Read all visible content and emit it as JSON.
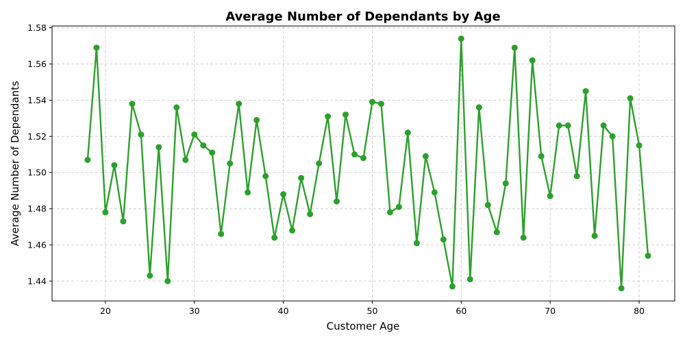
{
  "chart_data": {
    "type": "line",
    "title": "Average Number of Dependants by Age",
    "xlabel": "Customer Age",
    "ylabel": "Average Number of Dependants",
    "xlim": [
      14,
      84
    ],
    "ylim": [
      1.429,
      1.581
    ],
    "xticks": [
      20,
      30,
      40,
      50,
      60,
      70,
      80
    ],
    "yticks": [
      1.44,
      1.46,
      1.48,
      1.5,
      1.52,
      1.54,
      1.56,
      1.58
    ],
    "ytick_labels": [
      "1.44",
      "1.46",
      "1.48",
      "1.50",
      "1.52",
      "1.54",
      "1.56",
      "1.58"
    ],
    "grid": true,
    "color": "#2ca02c",
    "marker": "circle",
    "series": [
      {
        "x": [
          18,
          19,
          20,
          21,
          22,
          23,
          24,
          25,
          26,
          27,
          28,
          29,
          30,
          31,
          32,
          33,
          34,
          35,
          36,
          37,
          38,
          39,
          40,
          41,
          42,
          43,
          44,
          45,
          46,
          47,
          48,
          49,
          50,
          51,
          52,
          53,
          54,
          55,
          56,
          57,
          58,
          59,
          60,
          61,
          62,
          63,
          64,
          65,
          66,
          67,
          68,
          69,
          70,
          71,
          72,
          73,
          74,
          75,
          76,
          77,
          78,
          79,
          80,
          81
        ],
        "y": [
          1.507,
          1.569,
          1.478,
          1.504,
          1.473,
          1.538,
          1.521,
          1.443,
          1.514,
          1.44,
          1.536,
          1.507,
          1.521,
          1.515,
          1.511,
          1.466,
          1.505,
          1.538,
          1.489,
          1.529,
          1.498,
          1.464,
          1.488,
          1.468,
          1.497,
          1.477,
          1.505,
          1.531,
          1.484,
          1.532,
          1.51,
          1.508,
          1.539,
          1.538,
          1.478,
          1.481,
          1.522,
          1.461,
          1.509,
          1.489,
          1.463,
          1.437,
          1.574,
          1.441,
          1.536,
          1.482,
          1.467,
          1.494,
          1.569,
          1.464,
          1.562,
          1.509,
          1.487,
          1.526,
          1.526,
          1.498,
          1.545,
          1.465,
          1.526,
          1.52,
          1.436,
          1.541,
          1.515,
          1.454
        ]
      }
    ]
  }
}
